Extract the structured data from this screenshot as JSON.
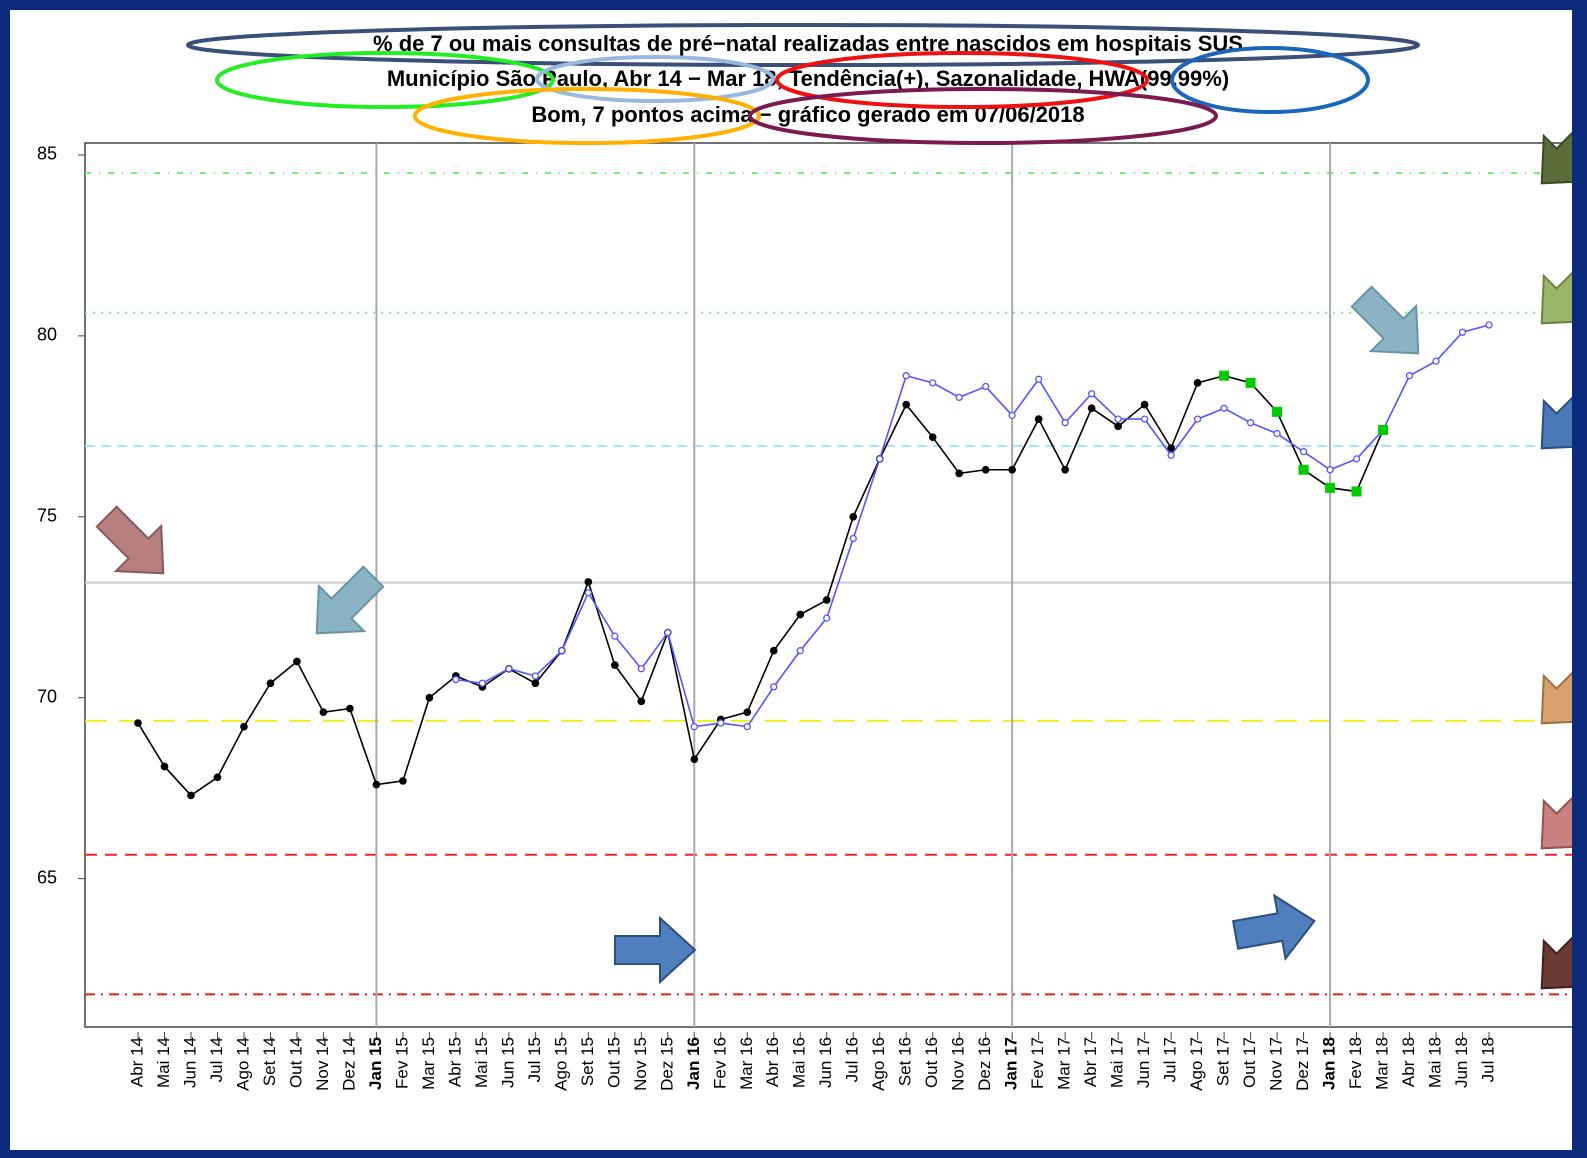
{
  "chart_data": {
    "type": "line",
    "title": "% de 7 ou mais consultas de pré−natal realizadas entre nascidos em hospitais SUS",
    "subtitle": "Município São Paulo, Abr 14 − Mar 18, Tendência(+), Sazonalidade, HWA(99.99%)",
    "note": "Bom, 7 pontos acima − gráfico gerado em 07/06/2018",
    "categories": [
      "Abr 14",
      "Mai 14",
      "Jun 14",
      "Jul 14",
      "Ago 14",
      "Set 14",
      "Out 14",
      "Nov 14",
      "Dez 14",
      "Jan 15",
      "Fev 15",
      "Mar 15",
      "Abr 15",
      "Mai 15",
      "Jun 15",
      "Jul 15",
      "Ago 15",
      "Set 15",
      "Out 15",
      "Nov 15",
      "Dez 15",
      "Jan 16",
      "Fev 16",
      "Mar 16",
      "Abr 16",
      "Mai 16",
      "Jun 16",
      "Jul 16",
      "Ago 16",
      "Set 16",
      "Out 16",
      "Nov 16",
      "Dez 16",
      "Jan 17",
      "Fev 17",
      "Mar 17",
      "Abr 17",
      "Mai 17",
      "Jun 17",
      "Jul 17",
      "Ago 17",
      "Set 17",
      "Out 17",
      "Nov 17",
      "Dez 17",
      "Jan 18",
      "Fev 18",
      "Mar 18",
      "Abr 18",
      "Mai 18",
      "Jun 18",
      "Jul 18"
    ],
    "series": [
      {
        "color": "#000000",
        "marker": "filled",
        "values": [
          69.3,
          68.1,
          67.3,
          67.8,
          69.2,
          70.4,
          71.0,
          69.6,
          69.7,
          67.6,
          67.7,
          70.0,
          70.6,
          70.3,
          70.8,
          70.4,
          71.3,
          73.2,
          70.9,
          69.9,
          71.8,
          68.3,
          69.4,
          69.6,
          71.3,
          72.3,
          72.7,
          75.0,
          76.6,
          78.1,
          77.2,
          76.2,
          76.3,
          76.3,
          77.7,
          76.3,
          78.0,
          77.5,
          78.1,
          76.9,
          78.7,
          78.9,
          78.7,
          77.9,
          76.3,
          75.8,
          75.7,
          77.4,
          null,
          null,
          null,
          null
        ]
      },
      {
        "color": "#5555ff",
        "marker": "open",
        "values": [
          null,
          null,
          null,
          null,
          null,
          null,
          null,
          null,
          null,
          null,
          null,
          null,
          70.5,
          70.4,
          70.8,
          70.6,
          71.3,
          72.9,
          71.7,
          70.8,
          71.8,
          69.2,
          69.3,
          69.2,
          70.3,
          71.3,
          72.2,
          74.4,
          76.6,
          78.9,
          78.7,
          78.3,
          78.6,
          77.8,
          78.8,
          77.6,
          78.4,
          77.7,
          77.7,
          76.7,
          77.7,
          78.0,
          77.6,
          77.3,
          76.8,
          76.3,
          76.6,
          77.4,
          78.9,
          79.3,
          80.1,
          80.3
        ]
      }
    ],
    "highlight": {
      "color": "#00cc00",
      "categories": [
        "Set 17",
        "Out 17",
        "Nov 17",
        "Dez 17",
        "Jan 18",
        "Fev 18",
        "Mar 18"
      ]
    },
    "hlines": [
      {
        "value": 84.5,
        "color": "#77ee77",
        "dash": "6 8 1 8"
      },
      {
        "value": 80.64,
        "color": "#77ee77",
        "dash": "2 6"
      },
      {
        "value": 76.96,
        "color": "#aaddff",
        "dash": "10 6"
      },
      {
        "value": 73.18,
        "color": "#cccccc",
        "dash": "none"
      },
      {
        "value": 69.36,
        "color": "#eeee22",
        "dash": "22 12"
      },
      {
        "value": 65.66,
        "color": "#ee2222",
        "dash": "12 8"
      },
      {
        "value": 61.8,
        "color": "#dd2222",
        "dash": "10 6 2 6"
      }
    ],
    "vlines": [
      "Jan 15",
      "Jan 16",
      "Jan 17",
      "Jan 18"
    ],
    "ylim": [
      60.9,
      85.33
    ],
    "yticks": [
      65,
      70,
      75,
      80,
      85
    ]
  }
}
